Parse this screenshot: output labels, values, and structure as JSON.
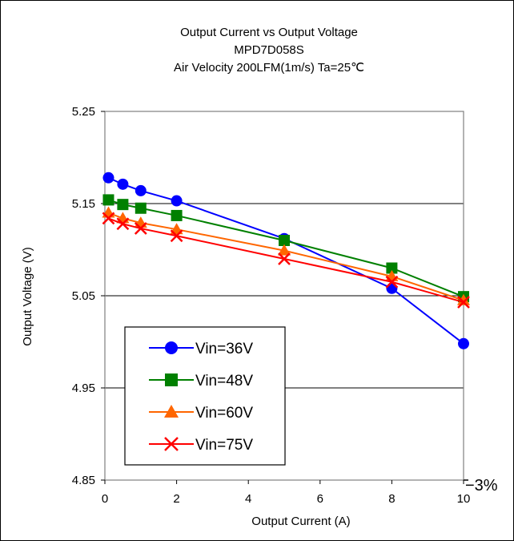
{
  "chart_data": {
    "type": "line",
    "title_lines": [
      "Output Current vs Output Voltage",
      "MPD7D058S",
      "Air Velocity 200LFM(1m/s) Ta=25℃"
    ],
    "xlabel": "Output Current (A)",
    "ylabel": "Output Voltage (V)",
    "xlim": [
      0,
      10
    ],
    "ylim": [
      4.85,
      5.25
    ],
    "xticks": [
      0,
      2,
      4,
      6,
      8,
      10
    ],
    "yticks": [
      4.85,
      4.95,
      5.05,
      5.15,
      5.25
    ],
    "xtick_labels": [
      "0",
      "2",
      "4",
      "6",
      "8",
      "10"
    ],
    "ytick_labels": [
      "4.85",
      "4.95",
      "5.05",
      "5.15",
      "5.25"
    ],
    "grid": "horizontal",
    "legend_position": "bottom-left",
    "annotation": "−3%",
    "x": [
      0.1,
      0.5,
      1,
      2,
      5,
      8,
      10
    ],
    "series": [
      {
        "name": "Vin=36V",
        "marker": "circle",
        "color": "#0000ff",
        "values": [
          5.178,
          5.171,
          5.164,
          5.153,
          5.112,
          5.058,
          4.998
        ]
      },
      {
        "name": "Vin=48V",
        "marker": "square",
        "color": "#008000",
        "values": [
          5.154,
          5.149,
          5.145,
          5.137,
          5.11,
          5.08,
          5.049
        ]
      },
      {
        "name": "Vin=60V",
        "marker": "triangle",
        "color": "#ff6600",
        "values": [
          5.14,
          5.134,
          5.129,
          5.122,
          5.099,
          5.071,
          5.045
        ]
      },
      {
        "name": "Vin=75V",
        "marker": "x",
        "color": "#ff0000",
        "values": [
          5.134,
          5.128,
          5.123,
          5.115,
          5.09,
          5.065,
          5.043
        ]
      }
    ]
  }
}
